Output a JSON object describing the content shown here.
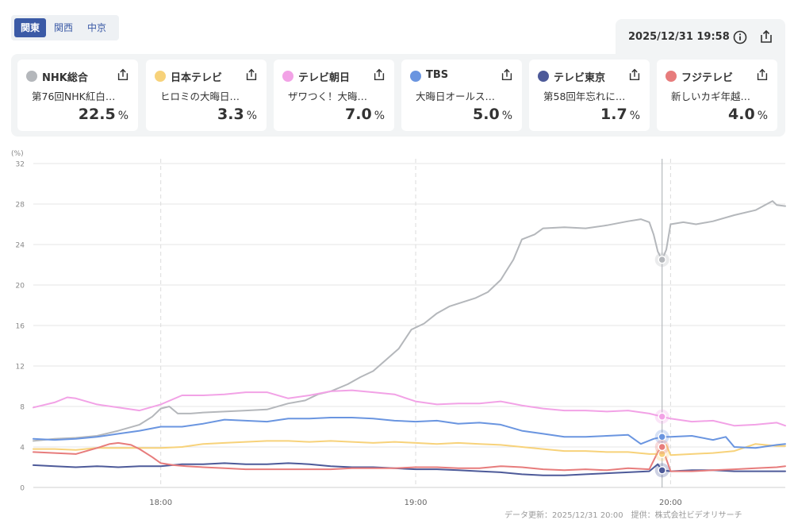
{
  "region_tabs": [
    {
      "label": "関東",
      "active": true
    },
    {
      "label": "関西",
      "active": false
    },
    {
      "label": "中京",
      "active": false
    }
  ],
  "timestamp": "2025/12/31 19:58",
  "channels": [
    {
      "name": "NHK総合",
      "program": "第76回NHK紅白…",
      "value": "22.5",
      "unit": "%",
      "color": "#b4b7bb"
    },
    {
      "name": "日本テレビ",
      "program": "ヒロミの大晦日…",
      "value": "3.3",
      "unit": "%",
      "color": "#f7d27a"
    },
    {
      "name": "テレビ朝日",
      "program": "ザワつく！大晦…",
      "value": "7.0",
      "unit": "%",
      "color": "#f2a2e6"
    },
    {
      "name": "TBS",
      "program": "大晦日オールス…",
      "value": "5.0",
      "unit": "%",
      "color": "#6a95e0"
    },
    {
      "name": "テレビ東京",
      "program": "第58回年忘れに…",
      "value": "1.7",
      "unit": "%",
      "color": "#4d5a99"
    },
    {
      "name": "フジテレビ",
      "program": "新しいカギ年越…",
      "value": "4.0",
      "unit": "%",
      "color": "#e77c7c"
    }
  ],
  "footer_text": "データ更新：2025/12/31 20:00　提供：株式会社ビデオリサーチ",
  "chart_data": {
    "type": "line",
    "y_unit_label": "(%)",
    "ylim": [
      0,
      32
    ],
    "y_ticks": [
      0,
      4,
      8,
      12,
      16,
      20,
      24,
      28,
      32
    ],
    "x_range_minutes": [
      1050,
      1227
    ],
    "x_ticks": [
      {
        "label": "18:00",
        "minute": 1080
      },
      {
        "label": "19:00",
        "minute": 1140
      },
      {
        "label": "20:00",
        "minute": 1200
      }
    ],
    "current_minute": 1198,
    "current_values": {
      "NHK総合": 22.5,
      "日本テレビ": 3.3,
      "テレビ朝日": 7.0,
      "TBS": 5.0,
      "テレビ東京": 1.7,
      "フジテレビ": 4.0
    },
    "series": [
      {
        "name": "NHK総合",
        "color": "#b4b7bb",
        "points": [
          [
            1050,
            4.6
          ],
          [
            1055,
            4.8
          ],
          [
            1060,
            4.9
          ],
          [
            1065,
            5.1
          ],
          [
            1070,
            5.6
          ],
          [
            1075,
            6.2
          ],
          [
            1078,
            7.0
          ],
          [
            1080,
            7.8
          ],
          [
            1082,
            8.0
          ],
          [
            1084,
            7.3
          ],
          [
            1087,
            7.3
          ],
          [
            1090,
            7.4
          ],
          [
            1095,
            7.5
          ],
          [
            1100,
            7.6
          ],
          [
            1105,
            7.7
          ],
          [
            1110,
            8.3
          ],
          [
            1114,
            8.6
          ],
          [
            1117,
            9.2
          ],
          [
            1120,
            9.5
          ],
          [
            1124,
            10.2
          ],
          [
            1127,
            10.9
          ],
          [
            1130,
            11.5
          ],
          [
            1133,
            12.6
          ],
          [
            1136,
            13.7
          ],
          [
            1139,
            15.6
          ],
          [
            1142,
            16.2
          ],
          [
            1145,
            17.2
          ],
          [
            1148,
            17.9
          ],
          [
            1151,
            18.3
          ],
          [
            1154,
            18.7
          ],
          [
            1157,
            19.3
          ],
          [
            1160,
            20.5
          ],
          [
            1163,
            22.5
          ],
          [
            1165,
            24.5
          ],
          [
            1168,
            25.0
          ],
          [
            1170,
            25.6
          ],
          [
            1175,
            25.7
          ],
          [
            1180,
            25.6
          ],
          [
            1185,
            25.9
          ],
          [
            1190,
            26.3
          ],
          [
            1193,
            26.5
          ],
          [
            1195,
            26.2
          ],
          [
            1196,
            25.0
          ],
          [
            1197,
            23.3
          ],
          [
            1198,
            22.5
          ],
          [
            1199,
            23.5
          ],
          [
            1200,
            26.0
          ],
          [
            1203,
            26.2
          ],
          [
            1206,
            26.0
          ],
          [
            1210,
            26.3
          ],
          [
            1215,
            26.9
          ],
          [
            1220,
            27.4
          ],
          [
            1224,
            28.3
          ],
          [
            1225,
            27.9
          ],
          [
            1227,
            27.8
          ]
        ]
      },
      {
        "name": "日本テレビ",
        "color": "#f7d27a",
        "points": [
          [
            1050,
            3.8
          ],
          [
            1055,
            3.8
          ],
          [
            1060,
            3.7
          ],
          [
            1065,
            3.9
          ],
          [
            1070,
            3.9
          ],
          [
            1075,
            3.9
          ],
          [
            1080,
            3.9
          ],
          [
            1085,
            4.0
          ],
          [
            1090,
            4.3
          ],
          [
            1095,
            4.4
          ],
          [
            1100,
            4.5
          ],
          [
            1105,
            4.6
          ],
          [
            1110,
            4.6
          ],
          [
            1115,
            4.5
          ],
          [
            1120,
            4.6
          ],
          [
            1125,
            4.5
          ],
          [
            1130,
            4.4
          ],
          [
            1135,
            4.5
          ],
          [
            1140,
            4.4
          ],
          [
            1145,
            4.3
          ],
          [
            1150,
            4.4
          ],
          [
            1155,
            4.3
          ],
          [
            1160,
            4.2
          ],
          [
            1165,
            4.0
          ],
          [
            1170,
            3.8
          ],
          [
            1175,
            3.6
          ],
          [
            1180,
            3.6
          ],
          [
            1185,
            3.5
          ],
          [
            1190,
            3.5
          ],
          [
            1195,
            3.3
          ],
          [
            1198,
            3.3
          ],
          [
            1199,
            4.2
          ],
          [
            1200,
            3.2
          ],
          [
            1205,
            3.3
          ],
          [
            1210,
            3.4
          ],
          [
            1215,
            3.6
          ],
          [
            1220,
            4.3
          ],
          [
            1225,
            4.1
          ],
          [
            1227,
            4.1
          ]
        ]
      },
      {
        "name": "テレビ朝日",
        "color": "#f2a2e6",
        "points": [
          [
            1050,
            7.9
          ],
          [
            1055,
            8.4
          ],
          [
            1058,
            8.9
          ],
          [
            1060,
            8.8
          ],
          [
            1065,
            8.2
          ],
          [
            1070,
            7.9
          ],
          [
            1075,
            7.6
          ],
          [
            1080,
            8.2
          ],
          [
            1085,
            9.1
          ],
          [
            1090,
            9.1
          ],
          [
            1095,
            9.2
          ],
          [
            1100,
            9.4
          ],
          [
            1105,
            9.4
          ],
          [
            1110,
            8.8
          ],
          [
            1115,
            9.1
          ],
          [
            1120,
            9.5
          ],
          [
            1125,
            9.6
          ],
          [
            1130,
            9.4
          ],
          [
            1135,
            9.2
          ],
          [
            1140,
            8.5
          ],
          [
            1145,
            8.2
          ],
          [
            1150,
            8.3
          ],
          [
            1155,
            8.3
          ],
          [
            1160,
            8.5
          ],
          [
            1165,
            8.1
          ],
          [
            1170,
            7.8
          ],
          [
            1175,
            7.6
          ],
          [
            1180,
            7.6
          ],
          [
            1185,
            7.5
          ],
          [
            1190,
            7.6
          ],
          [
            1195,
            7.3
          ],
          [
            1198,
            7.0
          ],
          [
            1200,
            6.8
          ],
          [
            1205,
            6.5
          ],
          [
            1210,
            6.6
          ],
          [
            1215,
            6.1
          ],
          [
            1220,
            6.2
          ],
          [
            1225,
            6.4
          ],
          [
            1227,
            6.1
          ]
        ]
      },
      {
        "name": "TBS",
        "color": "#6a95e0",
        "points": [
          [
            1050,
            4.8
          ],
          [
            1055,
            4.7
          ],
          [
            1060,
            4.8
          ],
          [
            1065,
            5.0
          ],
          [
            1070,
            5.3
          ],
          [
            1075,
            5.6
          ],
          [
            1080,
            6.0
          ],
          [
            1085,
            6.0
          ],
          [
            1090,
            6.3
          ],
          [
            1095,
            6.7
          ],
          [
            1100,
            6.6
          ],
          [
            1105,
            6.5
          ],
          [
            1110,
            6.8
          ],
          [
            1115,
            6.8
          ],
          [
            1120,
            6.9
          ],
          [
            1125,
            6.9
          ],
          [
            1130,
            6.8
          ],
          [
            1135,
            6.6
          ],
          [
            1140,
            6.5
          ],
          [
            1145,
            6.6
          ],
          [
            1150,
            6.3
          ],
          [
            1155,
            6.4
          ],
          [
            1160,
            6.2
          ],
          [
            1165,
            5.6
          ],
          [
            1170,
            5.3
          ],
          [
            1175,
            5.0
          ],
          [
            1180,
            5.0
          ],
          [
            1185,
            5.1
          ],
          [
            1190,
            5.2
          ],
          [
            1193,
            4.3
          ],
          [
            1196,
            4.8
          ],
          [
            1198,
            5.0
          ],
          [
            1200,
            5.0
          ],
          [
            1205,
            5.1
          ],
          [
            1210,
            4.7
          ],
          [
            1213,
            5.0
          ],
          [
            1215,
            4.0
          ],
          [
            1220,
            3.9
          ],
          [
            1225,
            4.2
          ],
          [
            1227,
            4.3
          ]
        ]
      },
      {
        "name": "テレビ東京",
        "color": "#4d5a99",
        "points": [
          [
            1050,
            2.2
          ],
          [
            1055,
            2.1
          ],
          [
            1060,
            2.0
          ],
          [
            1065,
            2.1
          ],
          [
            1070,
            2.0
          ],
          [
            1075,
            2.1
          ],
          [
            1080,
            2.1
          ],
          [
            1085,
            2.3
          ],
          [
            1090,
            2.3
          ],
          [
            1095,
            2.4
          ],
          [
            1100,
            2.3
          ],
          [
            1105,
            2.3
          ],
          [
            1110,
            2.4
          ],
          [
            1115,
            2.3
          ],
          [
            1120,
            2.1
          ],
          [
            1125,
            2.0
          ],
          [
            1130,
            2.0
          ],
          [
            1135,
            1.9
          ],
          [
            1140,
            1.8
          ],
          [
            1145,
            1.8
          ],
          [
            1150,
            1.7
          ],
          [
            1155,
            1.6
          ],
          [
            1160,
            1.5
          ],
          [
            1165,
            1.3
          ],
          [
            1170,
            1.2
          ],
          [
            1175,
            1.2
          ],
          [
            1180,
            1.3
          ],
          [
            1185,
            1.4
          ],
          [
            1190,
            1.5
          ],
          [
            1195,
            1.6
          ],
          [
            1197,
            2.3
          ],
          [
            1198,
            1.7
          ],
          [
            1200,
            1.6
          ],
          [
            1205,
            1.7
          ],
          [
            1210,
            1.7
          ],
          [
            1215,
            1.6
          ],
          [
            1220,
            1.6
          ],
          [
            1225,
            1.6
          ],
          [
            1227,
            1.6
          ]
        ]
      },
      {
        "name": "フジテレビ",
        "color": "#e77c7c",
        "points": [
          [
            1050,
            3.5
          ],
          [
            1055,
            3.4
          ],
          [
            1060,
            3.3
          ],
          [
            1065,
            3.9
          ],
          [
            1068,
            4.3
          ],
          [
            1070,
            4.4
          ],
          [
            1073,
            4.2
          ],
          [
            1075,
            3.8
          ],
          [
            1078,
            3.0
          ],
          [
            1080,
            2.4
          ],
          [
            1083,
            2.2
          ],
          [
            1086,
            2.1
          ],
          [
            1090,
            2.0
          ],
          [
            1095,
            1.9
          ],
          [
            1100,
            1.8
          ],
          [
            1105,
            1.8
          ],
          [
            1110,
            1.8
          ],
          [
            1115,
            1.8
          ],
          [
            1120,
            1.8
          ],
          [
            1125,
            1.9
          ],
          [
            1130,
            1.9
          ],
          [
            1135,
            1.9
          ],
          [
            1140,
            2.0
          ],
          [
            1145,
            2.0
          ],
          [
            1150,
            1.9
          ],
          [
            1155,
            1.9
          ],
          [
            1160,
            2.1
          ],
          [
            1165,
            2.0
          ],
          [
            1170,
            1.8
          ],
          [
            1175,
            1.7
          ],
          [
            1180,
            1.8
          ],
          [
            1185,
            1.7
          ],
          [
            1190,
            1.9
          ],
          [
            1195,
            1.8
          ],
          [
            1197,
            3.5
          ],
          [
            1198,
            4.0
          ],
          [
            1200,
            1.6
          ],
          [
            1205,
            1.6
          ],
          [
            1210,
            1.7
          ],
          [
            1215,
            1.8
          ],
          [
            1220,
            1.9
          ],
          [
            1225,
            2.0
          ],
          [
            1227,
            2.1
          ]
        ]
      }
    ]
  }
}
